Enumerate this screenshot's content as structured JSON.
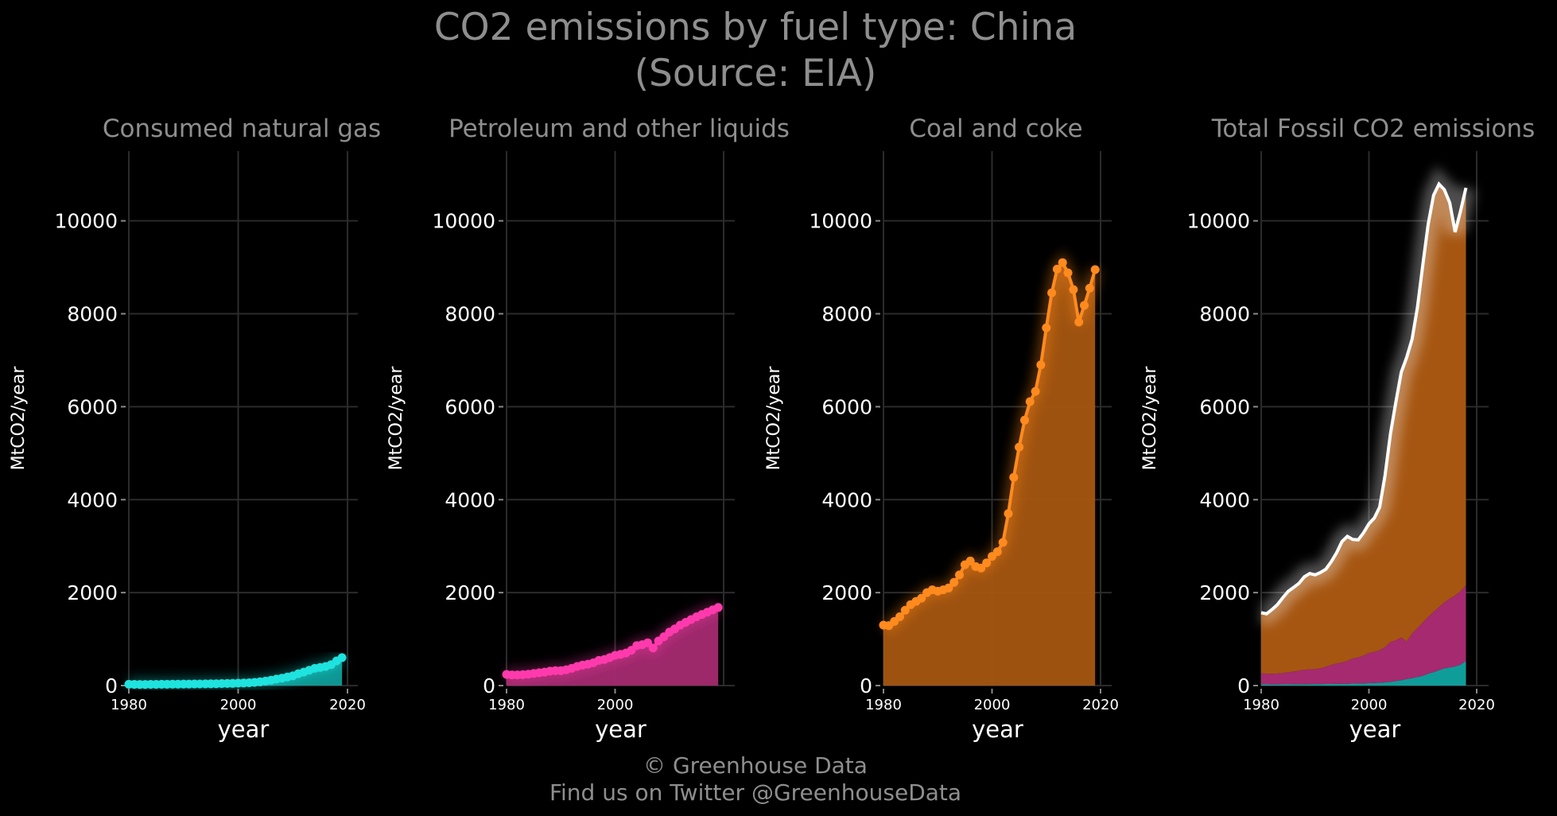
{
  "title_line1": "CO2 emissions by fuel type: China",
  "title_line2": "(Source: EIA)",
  "caption_line1": "© Greenhouse Data",
  "caption_line2": "Find us on Twitter @GreenhouseData",
  "colors": {
    "background": "#000000",
    "gas": "#1ee3de",
    "gas_fill": "#0f9d9a",
    "petroleum": "#ff3aac",
    "petroleum_fill": "#a52a70",
    "coal": "#ff8a1e",
    "coal_fill": "#a65611",
    "total": "#ffffff",
    "grid": "#2b2b2b",
    "title": "#8e8e8e"
  },
  "chart_data": [
    {
      "type": "area",
      "panel_id": "gas",
      "title": "Consumed natural gas",
      "xlabel": "year",
      "ylabel": "MtCO2/year",
      "xlim": [
        1980,
        2020
      ],
      "ylim": [
        0,
        11500
      ],
      "x_ticks": [
        1980,
        2000,
        2020
      ],
      "y_ticks": [
        0,
        2000,
        4000,
        6000,
        8000,
        10000
      ],
      "grid": true,
      "series": [
        {
          "name": "Consumed natural gas",
          "x": [
            1980,
            1981,
            1982,
            1983,
            1984,
            1985,
            1986,
            1987,
            1988,
            1989,
            1990,
            1991,
            1992,
            1993,
            1994,
            1995,
            1996,
            1997,
            1998,
            1999,
            2000,
            2001,
            2002,
            2003,
            2004,
            2005,
            2006,
            2007,
            2008,
            2009,
            2010,
            2011,
            2012,
            2013,
            2014,
            2015,
            2016,
            2017,
            2018,
            2019
          ],
          "values": [
            28,
            25,
            24,
            24,
            25,
            26,
            27,
            28,
            30,
            31,
            32,
            33,
            34,
            35,
            36,
            37,
            40,
            43,
            45,
            47,
            51,
            55,
            60,
            68,
            80,
            95,
            115,
            138,
            160,
            185,
            210,
            255,
            290,
            330,
            370,
            390,
            410,
            450,
            530,
            600
          ]
        }
      ]
    },
    {
      "type": "area",
      "panel_id": "petroleum",
      "title": "Petroleum and other liquids",
      "xlabel": "year",
      "ylabel": "MtCO2/year",
      "xlim": [
        1980,
        2020
      ],
      "ylim": [
        0,
        11500
      ],
      "x_ticks": [
        1980,
        2000
      ],
      "y_ticks": [
        0,
        2000,
        4000,
        6000,
        8000,
        10000
      ],
      "grid": true,
      "series": [
        {
          "name": "Petroleum and other liquids",
          "x": [
            1980,
            1981,
            1982,
            1983,
            1984,
            1985,
            1986,
            1987,
            1988,
            1989,
            1990,
            1991,
            1992,
            1993,
            1994,
            1995,
            1996,
            1997,
            1998,
            1999,
            2000,
            2001,
            2002,
            2003,
            2004,
            2005,
            2006,
            2007,
            2008,
            2009,
            2010,
            2011,
            2012,
            2013,
            2014,
            2015,
            2016,
            2017,
            2018,
            2019
          ],
          "values": [
            240,
            230,
            230,
            235,
            245,
            260,
            275,
            290,
            310,
            320,
            320,
            340,
            370,
            410,
            440,
            460,
            490,
            540,
            560,
            600,
            650,
            670,
            700,
            760,
            860,
            880,
            920,
            810,
            960,
            1050,
            1150,
            1220,
            1300,
            1360,
            1420,
            1480,
            1530,
            1580,
            1630,
            1680
          ]
        }
      ]
    },
    {
      "type": "area",
      "panel_id": "coal",
      "title": "Coal and coke",
      "xlabel": "year",
      "ylabel": "MtCO2/year",
      "xlim": [
        1980,
        2020
      ],
      "ylim": [
        0,
        11500
      ],
      "x_ticks": [
        1980,
        2000,
        2020
      ],
      "y_ticks": [
        0,
        2000,
        4000,
        6000,
        8000,
        10000
      ],
      "grid": true,
      "series": [
        {
          "name": "Coal and coke",
          "x": [
            1980,
            1981,
            1982,
            1983,
            1984,
            1985,
            1986,
            1987,
            1988,
            1989,
            1990,
            1991,
            1992,
            1993,
            1994,
            1995,
            1996,
            1997,
            1998,
            1999,
            2000,
            2001,
            2002,
            2003,
            2004,
            2005,
            2006,
            2007,
            2008,
            2009,
            2010,
            2011,
            2012,
            2013,
            2014,
            2015,
            2016,
            2017,
            2018,
            2019
          ],
          "values": [
            1300,
            1290,
            1380,
            1480,
            1620,
            1740,
            1810,
            1880,
            2000,
            2060,
            2030,
            2060,
            2100,
            2220,
            2380,
            2600,
            2680,
            2560,
            2530,
            2640,
            2780,
            2880,
            3080,
            3700,
            4480,
            5130,
            5710,
            6110,
            6330,
            6900,
            7700,
            8450,
            8960,
            9100,
            8880,
            8520,
            7820,
            8180,
            8550,
            8950
          ]
        }
      ]
    },
    {
      "type": "area",
      "panel_id": "total",
      "title": "Total Fossil CO2 emissions",
      "xlabel": "year",
      "ylabel": "MtCO2/year",
      "xlim": [
        1980,
        2020
      ],
      "ylim": [
        0,
        11500
      ],
      "x_ticks": [
        1980,
        2000,
        2020
      ],
      "y_ticks": [
        0,
        2000,
        4000,
        6000,
        8000,
        10000
      ],
      "grid": true,
      "stacked": true,
      "series": [
        {
          "name": "Consumed natural gas",
          "x": [
            1980,
            1981,
            1982,
            1983,
            1984,
            1985,
            1986,
            1987,
            1988,
            1989,
            1990,
            1991,
            1992,
            1993,
            1994,
            1995,
            1996,
            1997,
            1998,
            1999,
            2000,
            2001,
            2002,
            2003,
            2004,
            2005,
            2006,
            2007,
            2008,
            2009,
            2010,
            2011,
            2012,
            2013,
            2014,
            2015,
            2016,
            2017,
            2018
          ],
          "values": [
            28,
            25,
            24,
            24,
            25,
            26,
            27,
            28,
            30,
            31,
            32,
            33,
            34,
            35,
            36,
            37,
            40,
            43,
            45,
            47,
            51,
            55,
            60,
            68,
            80,
            95,
            115,
            138,
            160,
            185,
            210,
            255,
            290,
            330,
            370,
            390,
            410,
            450,
            530
          ]
        },
        {
          "name": "Petroleum and other liquids",
          "x": [
            1980,
            1981,
            1982,
            1983,
            1984,
            1985,
            1986,
            1987,
            1988,
            1989,
            1990,
            1991,
            1992,
            1993,
            1994,
            1995,
            1996,
            1997,
            1998,
            1999,
            2000,
            2001,
            2002,
            2003,
            2004,
            2005,
            2006,
            2007,
            2008,
            2009,
            2010,
            2011,
            2012,
            2013,
            2014,
            2015,
            2016,
            2017,
            2018
          ],
          "values": [
            240,
            230,
            230,
            235,
            245,
            260,
            275,
            290,
            310,
            320,
            320,
            340,
            370,
            410,
            440,
            460,
            490,
            540,
            560,
            600,
            650,
            670,
            700,
            760,
            860,
            880,
            920,
            810,
            960,
            1050,
            1150,
            1220,
            1300,
            1360,
            1420,
            1480,
            1530,
            1580,
            1630
          ]
        },
        {
          "name": "Coal and coke",
          "x": [
            1980,
            1981,
            1982,
            1983,
            1984,
            1985,
            1986,
            1987,
            1988,
            1989,
            1990,
            1991,
            1992,
            1993,
            1994,
            1995,
            1996,
            1997,
            1998,
            1999,
            2000,
            2001,
            2002,
            2003,
            2004,
            2005,
            2006,
            2007,
            2008,
            2009,
            2010,
            2011,
            2012,
            2013,
            2014,
            2015,
            2016,
            2017,
            2018
          ],
          "values": [
            1300,
            1290,
            1380,
            1480,
            1620,
            1740,
            1810,
            1880,
            2000,
            2060,
            2030,
            2060,
            2100,
            2220,
            2380,
            2600,
            2680,
            2560,
            2530,
            2640,
            2780,
            2880,
            3080,
            3700,
            4480,
            5130,
            5710,
            6110,
            6330,
            6900,
            7700,
            8450,
            8960,
            9100,
            8880,
            8520,
            7820,
            8180,
            8550
          ]
        }
      ]
    }
  ]
}
